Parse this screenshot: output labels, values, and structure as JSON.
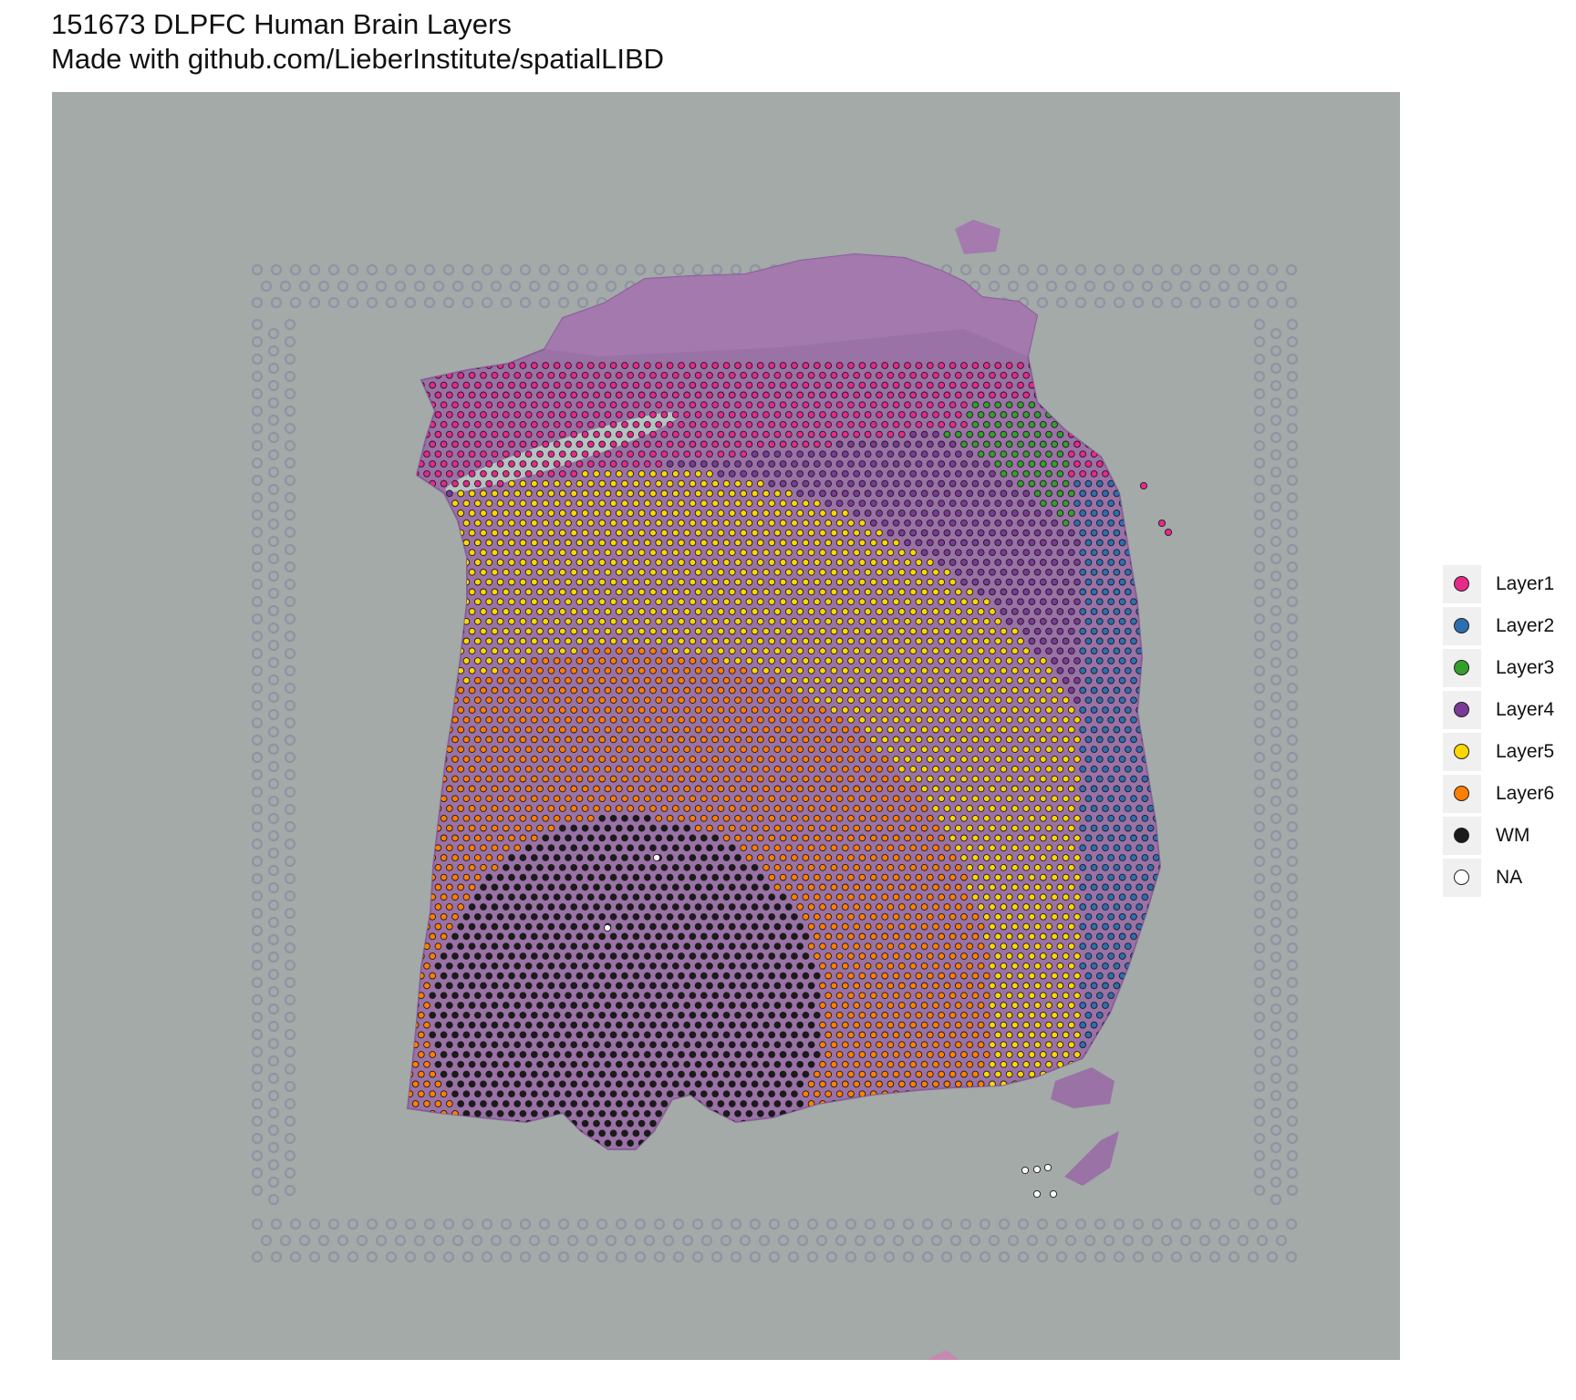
{
  "chart_data": {
    "type": "scatter",
    "title": "151673 DLPFC Human Brain Layers",
    "subtitle": "Made with github.com/LieberInstitute/spatialLIBD",
    "xlabel": "",
    "ylabel": "",
    "grid": false,
    "legend_position": "right",
    "background": "H&E tissue image",
    "series": [
      {
        "name": "Layer1",
        "color": "#E7298A"
      },
      {
        "name": "Layer2",
        "color": "#2C6FB1"
      },
      {
        "name": "Layer3",
        "color": "#33A02C"
      },
      {
        "name": "Layer4",
        "color": "#7B3A96"
      },
      {
        "name": "Layer5",
        "color": "#FFD700"
      },
      {
        "name": "Layer6",
        "color": "#FF7F00"
      },
      {
        "name": "WM",
        "color": "#1A1A1A"
      },
      {
        "name": "NA",
        "color": "#FFFFFF"
      }
    ]
  }
}
